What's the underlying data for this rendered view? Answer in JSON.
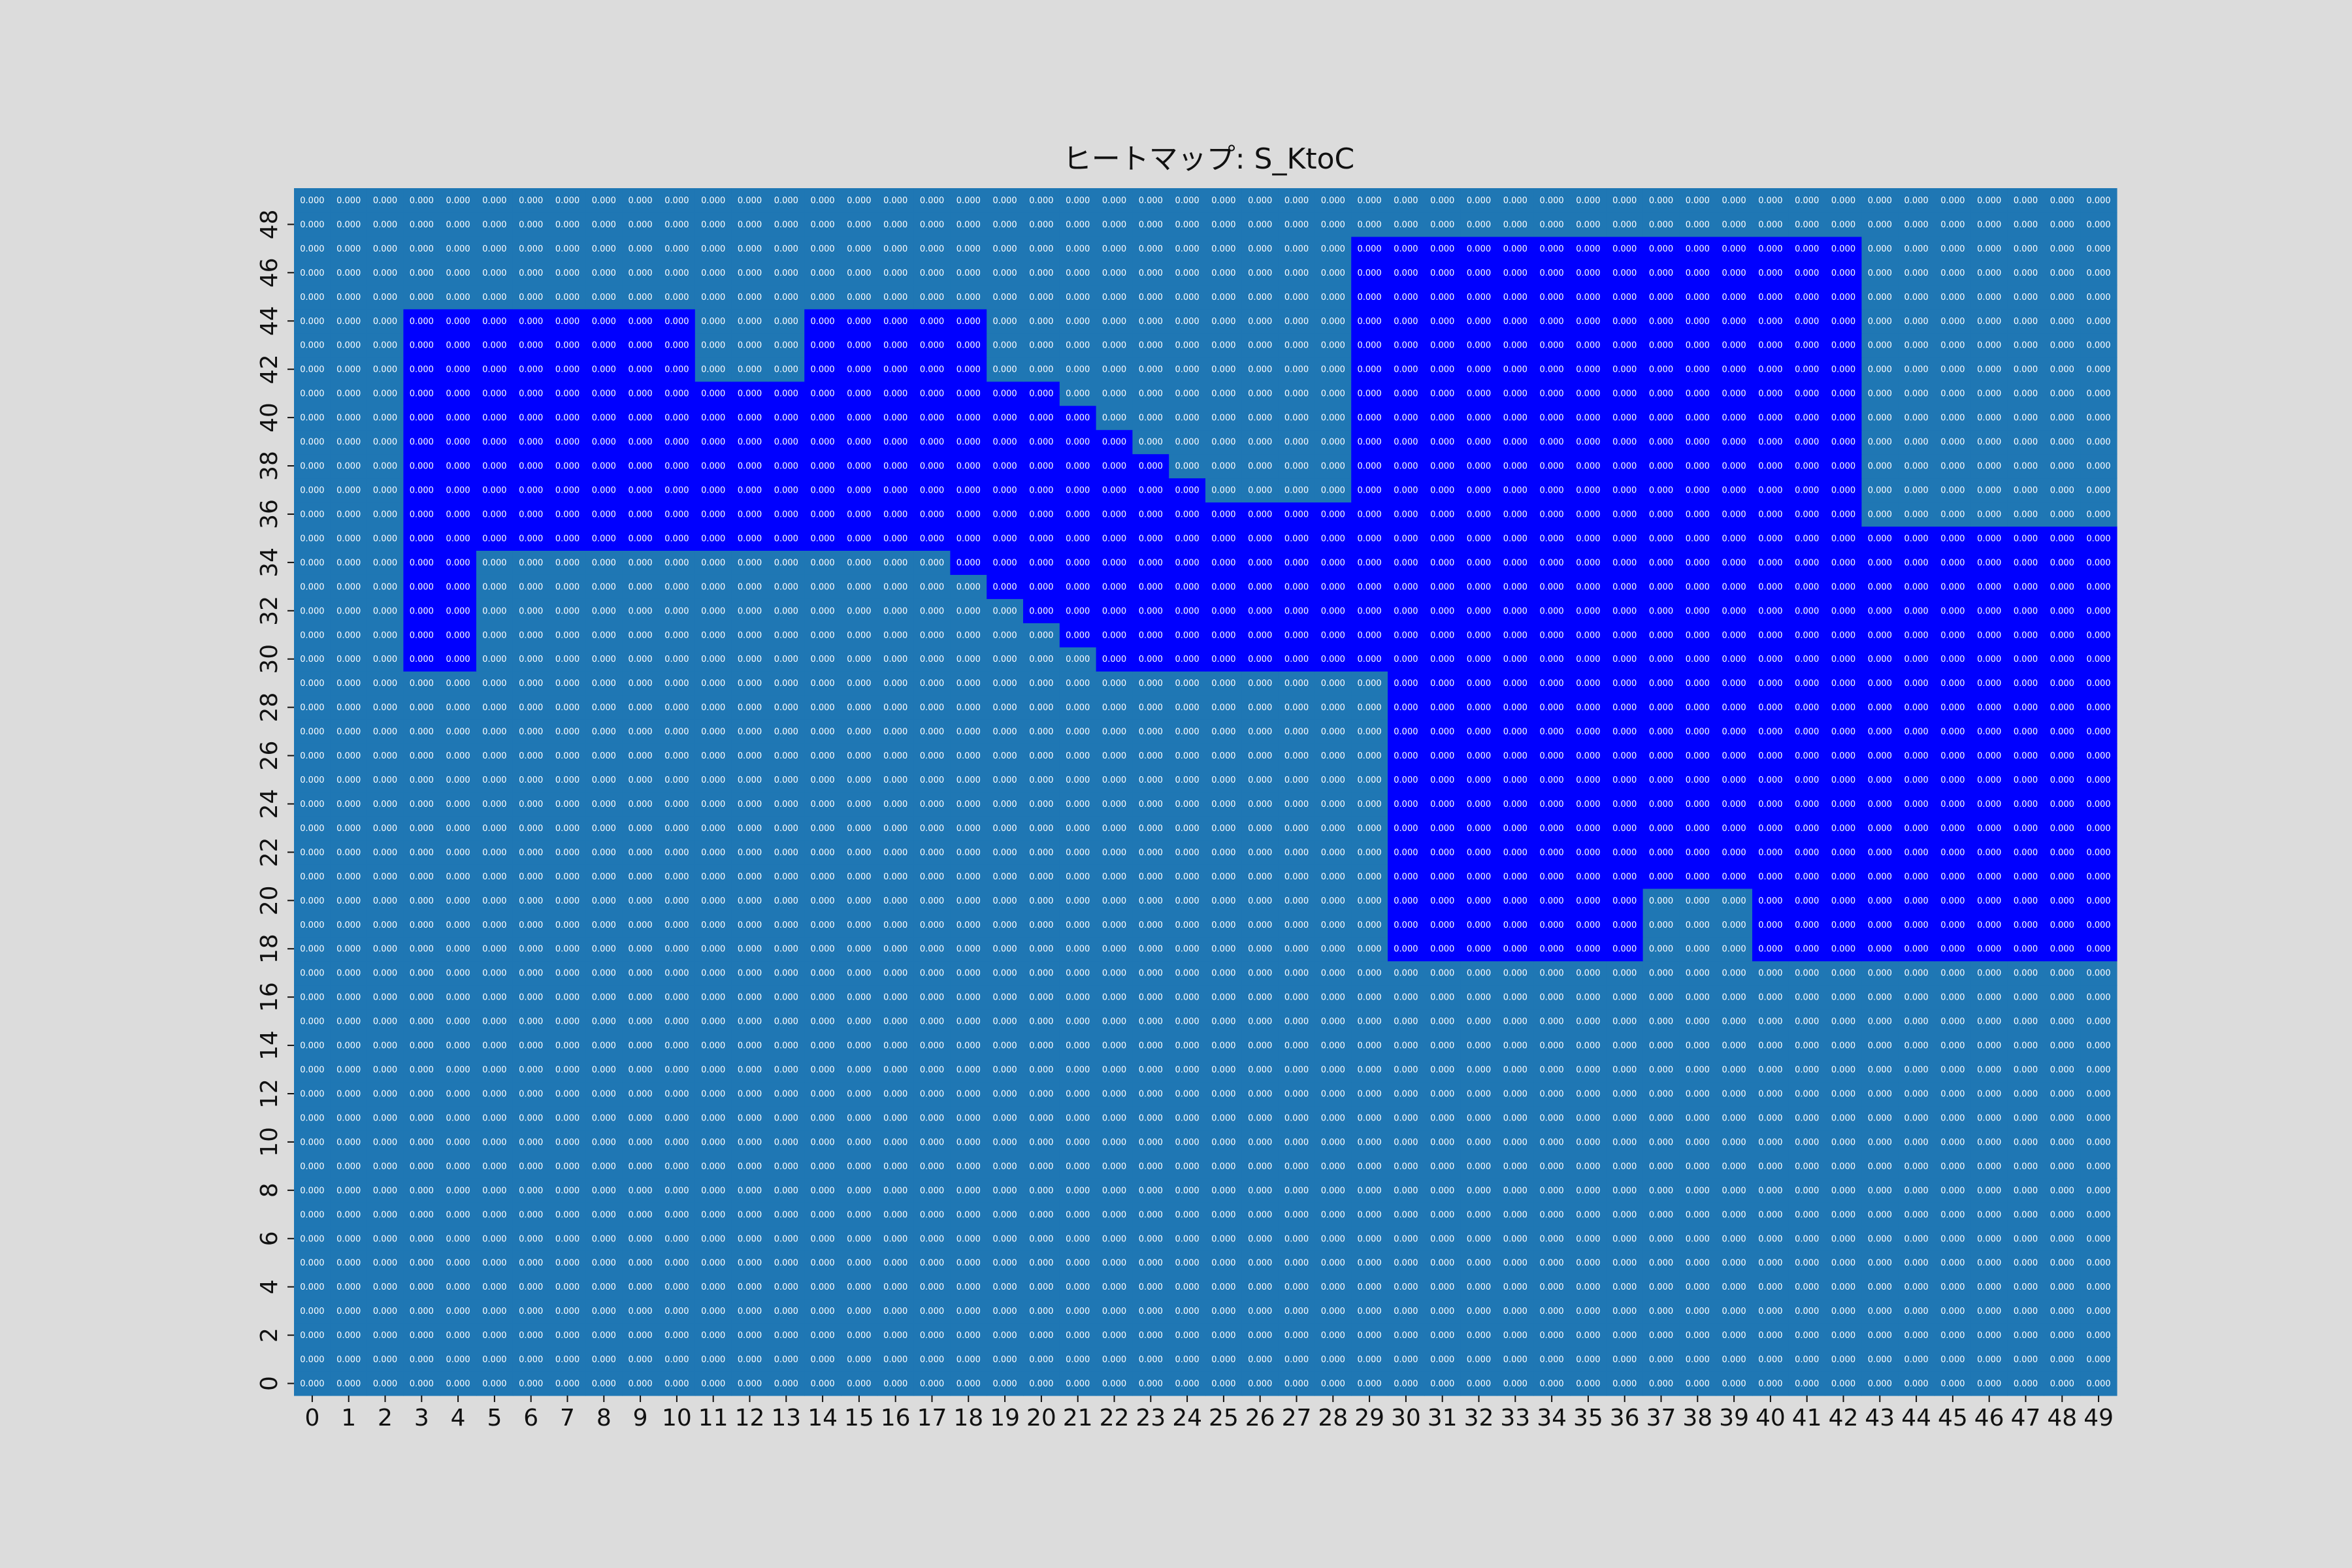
{
  "chart_data": {
    "type": "heatmap",
    "title": "ヒートマップ: S_KtoC",
    "xlabel": "",
    "ylabel": "",
    "x_ticks": [
      "0",
      "1",
      "2",
      "3",
      "4",
      "5",
      "6",
      "7",
      "8",
      "9",
      "10",
      "11",
      "12",
      "13",
      "14",
      "15",
      "16",
      "17",
      "18",
      "19",
      "20",
      "21",
      "22",
      "23",
      "24",
      "25",
      "26",
      "27",
      "28",
      "29",
      "30",
      "31",
      "32",
      "33",
      "34",
      "35",
      "36",
      "37",
      "38",
      "39",
      "40",
      "41",
      "42",
      "43",
      "44",
      "45",
      "46",
      "47",
      "48",
      "49"
    ],
    "y_ticks": [
      "0",
      "2",
      "4",
      "6",
      "8",
      "10",
      "12",
      "14",
      "16",
      "18",
      "20",
      "22",
      "24",
      "26",
      "28",
      "30",
      "32",
      "34",
      "36",
      "38",
      "40",
      "42",
      "44",
      "46",
      "48"
    ],
    "rows": 50,
    "cols": 50,
    "y_origin": "bottom",
    "cell_value_label": "0.000",
    "regions_note": "Cells in blue regions belong to category 1; all other cells category 0. Every cell annotation reads 0.000.",
    "region_mask": {
      "category_1_ranges_by_row": [
        {
          "rows": [
            18,
            20
          ],
          "col_ranges": [
            [
              30,
              36
            ],
            [
              40,
              49
            ]
          ]
        },
        {
          "rows": [
            21,
            29
          ],
          "col_ranges": [
            [
              30,
              49
            ]
          ]
        },
        {
          "rows": [
            30,
            30
          ],
          "col_ranges": [
            [
              3,
              4
            ],
            [
              22,
              49
            ]
          ]
        },
        {
          "rows": [
            31,
            31
          ],
          "col_ranges": [
            [
              3,
              4
            ],
            [
              21,
              49
            ]
          ]
        },
        {
          "rows": [
            32,
            32
          ],
          "col_ranges": [
            [
              3,
              4
            ],
            [
              20,
              49
            ]
          ]
        },
        {
          "rows": [
            33,
            33
          ],
          "col_ranges": [
            [
              3,
              4
            ],
            [
              19,
              49
            ]
          ]
        },
        {
          "rows": [
            34,
            34
          ],
          "col_ranges": [
            [
              3,
              4
            ],
            [
              18,
              49
            ]
          ]
        },
        {
          "rows": [
            35,
            35
          ],
          "col_ranges": [
            [
              3,
              49
            ]
          ]
        },
        {
          "rows": [
            36,
            36
          ],
          "col_ranges": [
            [
              3,
              42
            ]
          ]
        },
        {
          "rows": [
            37,
            37
          ],
          "col_ranges": [
            [
              3,
              24
            ],
            [
              29,
              42
            ]
          ]
        },
        {
          "rows": [
            38,
            38
          ],
          "col_ranges": [
            [
              3,
              23
            ],
            [
              29,
              42
            ]
          ]
        },
        {
          "rows": [
            39,
            39
          ],
          "col_ranges": [
            [
              3,
              22
            ],
            [
              29,
              42
            ]
          ]
        },
        {
          "rows": [
            40,
            40
          ],
          "col_ranges": [
            [
              3,
              21
            ],
            [
              29,
              42
            ]
          ]
        },
        {
          "rows": [
            41,
            41
          ],
          "col_ranges": [
            [
              3,
              20
            ],
            [
              29,
              42
            ]
          ]
        },
        {
          "rows": [
            42,
            44
          ],
          "col_ranges": [
            [
              3,
              10
            ],
            [
              14,
              18
            ],
            [
              29,
              42
            ]
          ]
        },
        {
          "rows": [
            45,
            47
          ],
          "col_ranges": [
            [
              29,
              42
            ]
          ]
        }
      ]
    },
    "colors": {
      "category_0": "#1f77b4",
      "category_1": "#0000ff",
      "text_on_0": "#ffffff",
      "text_on_1": "#ffffff"
    },
    "grid": false,
    "legend": "none"
  }
}
